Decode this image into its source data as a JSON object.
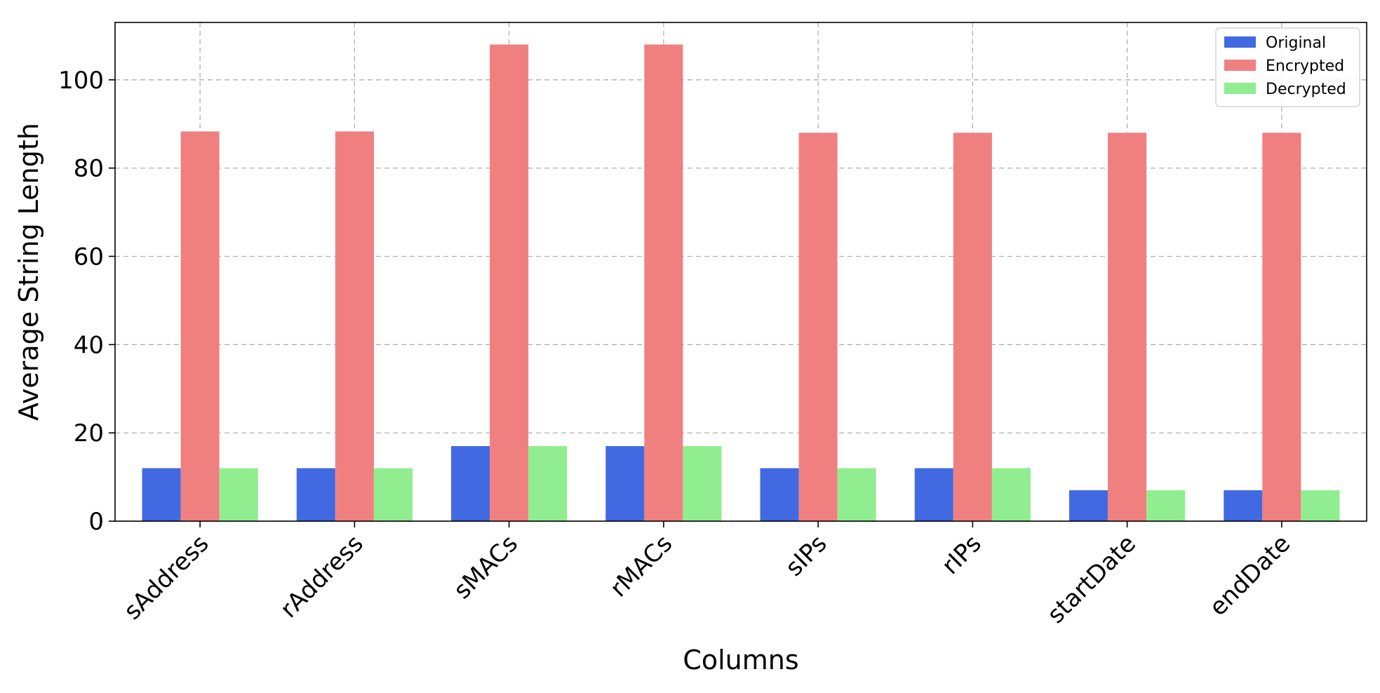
{
  "chart_data": {
    "type": "bar",
    "categories": [
      "sAddress",
      "rAddress",
      "sMACs",
      "rMACs",
      "sIPs",
      "rIPs",
      "startDate",
      "endDate"
    ],
    "series": [
      {
        "name": "Original",
        "color": "#4169e1",
        "values": [
          12,
          12,
          17,
          17,
          12,
          12,
          7,
          7
        ]
      },
      {
        "name": "Encrypted",
        "color": "#f08080",
        "values": [
          88.3,
          88.3,
          108,
          108,
          88,
          88,
          88,
          88
        ]
      },
      {
        "name": "Decrypted",
        "color": "#90ee90",
        "values": [
          12,
          12,
          17,
          17,
          12,
          12,
          7,
          7
        ]
      }
    ],
    "xlabel": "Columns",
    "ylabel": "Average String Length",
    "ylim": [
      0,
      113
    ],
    "yticks": [
      0,
      20,
      40,
      60,
      80,
      100
    ],
    "grid": true,
    "legend_position": "top-right"
  }
}
